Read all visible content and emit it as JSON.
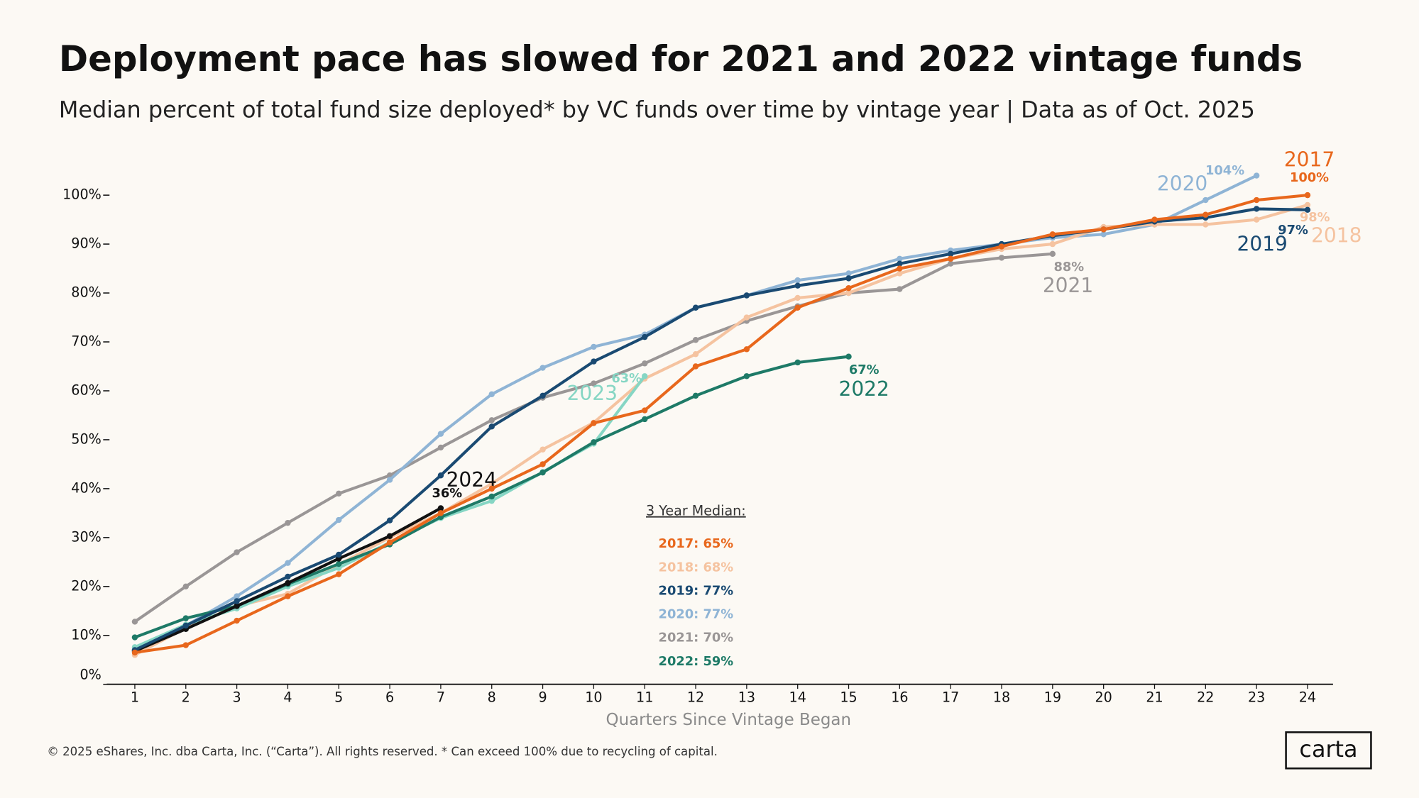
{
  "chart_data": {
    "type": "line",
    "title": "Deployment pace has slowed for 2021 and 2022 vintage funds",
    "subtitle": "Median percent of total fund size deployed* by VC funds over time by vintage year | Data as of Oct. 2025",
    "x_label": "Quarters Since Vintage Began",
    "x": [
      1,
      2,
      3,
      4,
      5,
      6,
      7,
      8,
      9,
      10,
      11,
      12,
      13,
      14,
      15,
      16,
      17,
      18,
      19,
      20,
      21,
      22,
      23,
      24
    ],
    "xlim": [
      0.45,
      24.5
    ],
    "xticks": [
      1,
      2,
      3,
      4,
      5,
      6,
      7,
      8,
      9,
      10,
      11,
      12,
      13,
      14,
      15,
      16,
      17,
      18,
      19,
      20,
      21,
      22,
      23,
      24
    ],
    "ylim": [
      0,
      110
    ],
    "yticks": [
      {
        "value": 0,
        "label": "0%"
      },
      {
        "value": 10,
        "label": "10%"
      },
      {
        "value": 20,
        "label": "20%"
      },
      {
        "value": 30,
        "label": "30%"
      },
      {
        "value": 40,
        "label": "40%"
      },
      {
        "value": 50,
        "label": "50%"
      },
      {
        "value": 60,
        "label": "60%"
      },
      {
        "value": 70,
        "label": "70%"
      },
      {
        "value": 80,
        "label": "80%"
      },
      {
        "value": 90,
        "label": "90%"
      },
      {
        "value": 100,
        "label": "100%"
      }
    ],
    "series": [
      {
        "name": "2021",
        "color": "#9a9696",
        "values": [
          12.8,
          20,
          27,
          33,
          39,
          42.7,
          48.4,
          54,
          58.6,
          61.5,
          65.6,
          70.4,
          74.3,
          77.3,
          80,
          80.8,
          86,
          87.2,
          88,
          null,
          null,
          null,
          null,
          null
        ],
        "value_labels": [
          null,
          null,
          null,
          null,
          null,
          null,
          null,
          null,
          null,
          null,
          null,
          null,
          null,
          null,
          null,
          null,
          null,
          null,
          "88%",
          null,
          null,
          null,
          null,
          null
        ]
      },
      {
        "name": "2020",
        "color": "#8fb4d5",
        "values": [
          7,
          12,
          18,
          24.8,
          33.6,
          41.8,
          51.2,
          59.3,
          64.7,
          69,
          71.5,
          77,
          79.5,
          82.6,
          84,
          87,
          88.7,
          90,
          91.3,
          92,
          94,
          99,
          104,
          null
        ],
        "value_labels": [
          null,
          null,
          null,
          null,
          null,
          null,
          null,
          null,
          null,
          null,
          null,
          null,
          null,
          null,
          null,
          null,
          null,
          null,
          null,
          null,
          null,
          null,
          "104%",
          null
        ]
      },
      {
        "name": "2018",
        "color": "#f5c3a0",
        "values": [
          6,
          11.5,
          16,
          18.5,
          24.5,
          30,
          35,
          41,
          48,
          53.5,
          62.5,
          67.5,
          75,
          79,
          80,
          84,
          87,
          89,
          90,
          93.5,
          94,
          94,
          95,
          98
        ],
        "value_labels": [
          null,
          null,
          null,
          null,
          null,
          null,
          null,
          null,
          null,
          null,
          null,
          null,
          null,
          null,
          null,
          null,
          null,
          null,
          null,
          null,
          null,
          null,
          null,
          "98%"
        ]
      },
      {
        "name": "2023",
        "color": "#86d6c4",
        "values": [
          7.6,
          12.2,
          15.5,
          20,
          23.8,
          29,
          34,
          37.5,
          43.4,
          49.2,
          63,
          null,
          null,
          null,
          null,
          null,
          null,
          null,
          null,
          null,
          null,
          null,
          null,
          null
        ],
        "value_labels": [
          null,
          null,
          null,
          null,
          null,
          null,
          null,
          null,
          null,
          null,
          "63%",
          null,
          null,
          null,
          null,
          null,
          null,
          null,
          null,
          null,
          null,
          null,
          null,
          null
        ]
      },
      {
        "name": "2022",
        "color": "#1e7a67",
        "values": [
          9.6,
          13.5,
          16,
          20.5,
          24.6,
          28.6,
          34.2,
          38.4,
          43.3,
          49.5,
          54.2,
          59,
          63,
          65.8,
          67,
          null,
          null,
          null,
          null,
          null,
          null,
          null,
          null,
          null
        ],
        "value_labels": [
          null,
          null,
          null,
          null,
          null,
          null,
          null,
          null,
          null,
          null,
          null,
          null,
          null,
          null,
          "67%",
          null,
          null,
          null,
          null,
          null,
          null,
          null,
          null,
          null
        ]
      },
      {
        "name": "2024",
        "color": "#111111",
        "values": [
          6.8,
          11.3,
          16,
          20.7,
          25.7,
          30.3,
          36,
          null,
          null,
          null,
          null,
          null,
          null,
          null,
          null,
          null,
          null,
          null,
          null,
          null,
          null,
          null,
          null,
          null
        ],
        "value_labels": [
          null,
          null,
          null,
          null,
          null,
          null,
          "36%",
          null,
          null,
          null,
          null,
          null,
          null,
          null,
          null,
          null,
          null,
          null,
          null,
          null,
          null,
          null,
          null,
          null
        ]
      },
      {
        "name": "2019",
        "color": "#1a4a72",
        "values": [
          7,
          12,
          17,
          22,
          26.5,
          33.5,
          42.7,
          52.7,
          59,
          66,
          71,
          77,
          79.5,
          81.5,
          83,
          86,
          88,
          90,
          91.7,
          93,
          94.6,
          95.4,
          97.2,
          97
        ],
        "value_labels": [
          null,
          null,
          null,
          null,
          null,
          null,
          null,
          null,
          null,
          null,
          null,
          null,
          null,
          null,
          null,
          null,
          null,
          null,
          null,
          null,
          null,
          null,
          null,
          "97%"
        ]
      },
      {
        "name": "2017",
        "color": "#e8671c",
        "values": [
          6.5,
          8,
          13,
          18,
          22.5,
          29,
          35,
          40,
          45,
          53.4,
          56,
          65,
          68.5,
          77,
          81,
          85,
          87,
          89.5,
          92,
          93,
          95,
          96,
          99,
          100
        ],
        "value_labels": [
          null,
          null,
          null,
          null,
          null,
          null,
          null,
          null,
          null,
          null,
          null,
          null,
          null,
          null,
          null,
          null,
          null,
          null,
          null,
          null,
          null,
          null,
          null,
          "100%"
        ]
      }
    ],
    "median_box": {
      "title": "3 Year Median:",
      "items": [
        {
          "label": "2017: 65%",
          "color": "#e8671c"
        },
        {
          "label": "2018: 68%",
          "color": "#f5c3a0"
        },
        {
          "label": "2019: 77%",
          "color": "#1a4a72"
        },
        {
          "label": "2020: 77%",
          "color": "#8fb4d5"
        },
        {
          "label": "2021: 70%",
          "color": "#9a9696"
        },
        {
          "label": "2022: 59%",
          "color": "#1e7a67"
        }
      ]
    },
    "footer": "© 2025 eShares, Inc. dba Carta, Inc. (“Carta”). All rights reserved.  * Can exceed 100% due to recycling of capital.",
    "logo": "carta"
  }
}
